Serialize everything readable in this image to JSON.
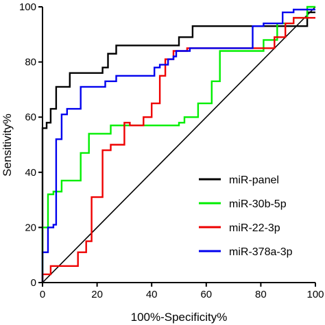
{
  "chart_data": {
    "type": "line",
    "title": "",
    "xlabel": "100%-Specificity%",
    "ylabel": "Sensitivity%",
    "xlim": [
      0,
      100
    ],
    "ylim": [
      0,
      100
    ],
    "xticks": [
      "0",
      "20",
      "40",
      "60",
      "80",
      "100"
    ],
    "yticks": [
      "0",
      "20",
      "40",
      "60",
      "80",
      "100"
    ],
    "grid": false,
    "legend": "bottom-right",
    "reference_line": {
      "x": [
        0,
        100
      ],
      "y": [
        0,
        100
      ],
      "color": "#000000"
    },
    "series": [
      {
        "name": "miR-panel",
        "color": "#000000",
        "x": [
          0,
          0,
          1.5,
          1.5,
          3,
          3,
          5,
          5,
          10,
          10,
          22,
          22,
          24,
          24,
          27,
          27,
          50,
          50,
          55,
          55,
          97,
          97,
          100
        ],
        "y": [
          0,
          56,
          56,
          58,
          58,
          63,
          63,
          71,
          71,
          76,
          76,
          78,
          78,
          83,
          83,
          86,
          86,
          89,
          89,
          93,
          93,
          98,
          98
        ]
      },
      {
        "name": "miR-30b-5p",
        "color": "#00ee00",
        "x": [
          0,
          0,
          2,
          2,
          4,
          4,
          7,
          7,
          14,
          14,
          17,
          17,
          25,
          25,
          50,
          50,
          52,
          52,
          57,
          57,
          62,
          62,
          65,
          65,
          81,
          81,
          86,
          86,
          92,
          92,
          97,
          97,
          100
        ],
        "y": [
          0,
          20,
          20,
          32,
          32,
          33,
          33,
          37,
          37,
          47,
          47,
          54,
          54,
          57,
          57,
          58,
          58,
          60,
          60,
          65,
          65,
          73,
          73,
          84,
          84,
          88,
          88,
          94,
          94,
          96,
          96,
          100,
          100
        ]
      },
      {
        "name": "miR-22-3p",
        "color": "#ee0000",
        "x": [
          0,
          0,
          3,
          3,
          13,
          13,
          16,
          16,
          18,
          18,
          22,
          22,
          25,
          25,
          30,
          30,
          32,
          32,
          37,
          37,
          40,
          40,
          43,
          43,
          45,
          45,
          48,
          48,
          50,
          50,
          53,
          53,
          85,
          85,
          89,
          89,
          92,
          92,
          100
        ],
        "y": [
          0,
          3,
          3,
          6,
          6,
          11,
          11,
          15,
          15,
          31,
          31,
          48,
          48,
          50,
          50,
          58,
          58,
          57,
          57,
          60,
          60,
          65,
          65,
          75,
          75,
          81,
          81,
          84,
          84,
          84,
          84,
          85,
          85,
          89,
          89,
          94,
          94,
          96,
          96
        ]
      },
      {
        "name": "miR-378a-3p",
        "color": "#0000ee",
        "x": [
          0,
          0,
          2,
          2,
          4,
          4,
          5,
          5,
          7,
          7,
          9,
          9,
          14,
          14,
          23,
          23,
          27,
          27,
          41,
          41,
          43,
          43,
          46,
          46,
          48,
          48,
          49,
          49,
          54,
          54,
          77,
          77,
          81,
          81,
          88,
          88,
          92,
          92,
          100
        ],
        "y": [
          0,
          11,
          11,
          20,
          20,
          21,
          21,
          52,
          52,
          61,
          61,
          63,
          63,
          71,
          71,
          73,
          73,
          75,
          75,
          78,
          78,
          79,
          79,
          81,
          81,
          82,
          82,
          84,
          84,
          85,
          85,
          93,
          93,
          94,
          94,
          98,
          98,
          99,
          99
        ]
      }
    ]
  }
}
